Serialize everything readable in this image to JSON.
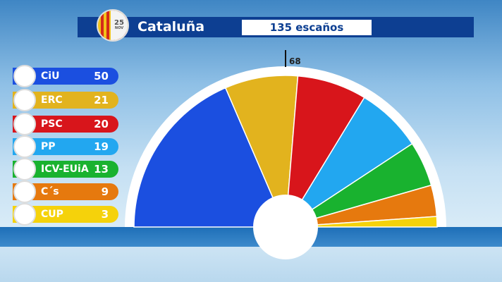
{
  "header": {
    "title": "Cataluña",
    "seats_label": "135 escaños",
    "badge_day": "25",
    "badge_month": "NOV"
  },
  "chart_data": {
    "type": "pie",
    "subtype": "parliament-semicircle",
    "total": 135,
    "majority": 68,
    "majority_label": "68",
    "categories": [
      "CiU",
      "ERC",
      "PSC",
      "PP",
      "ICV-EUiA",
      "C´s",
      "CUP"
    ],
    "values": [
      50,
      21,
      20,
      19,
      13,
      9,
      3
    ],
    "colors": [
      "#1b4fe0",
      "#e2b31e",
      "#d8151b",
      "#22a7f0",
      "#19b22f",
      "#e6790e",
      "#f5d20b"
    ],
    "legend_placement": "left"
  }
}
